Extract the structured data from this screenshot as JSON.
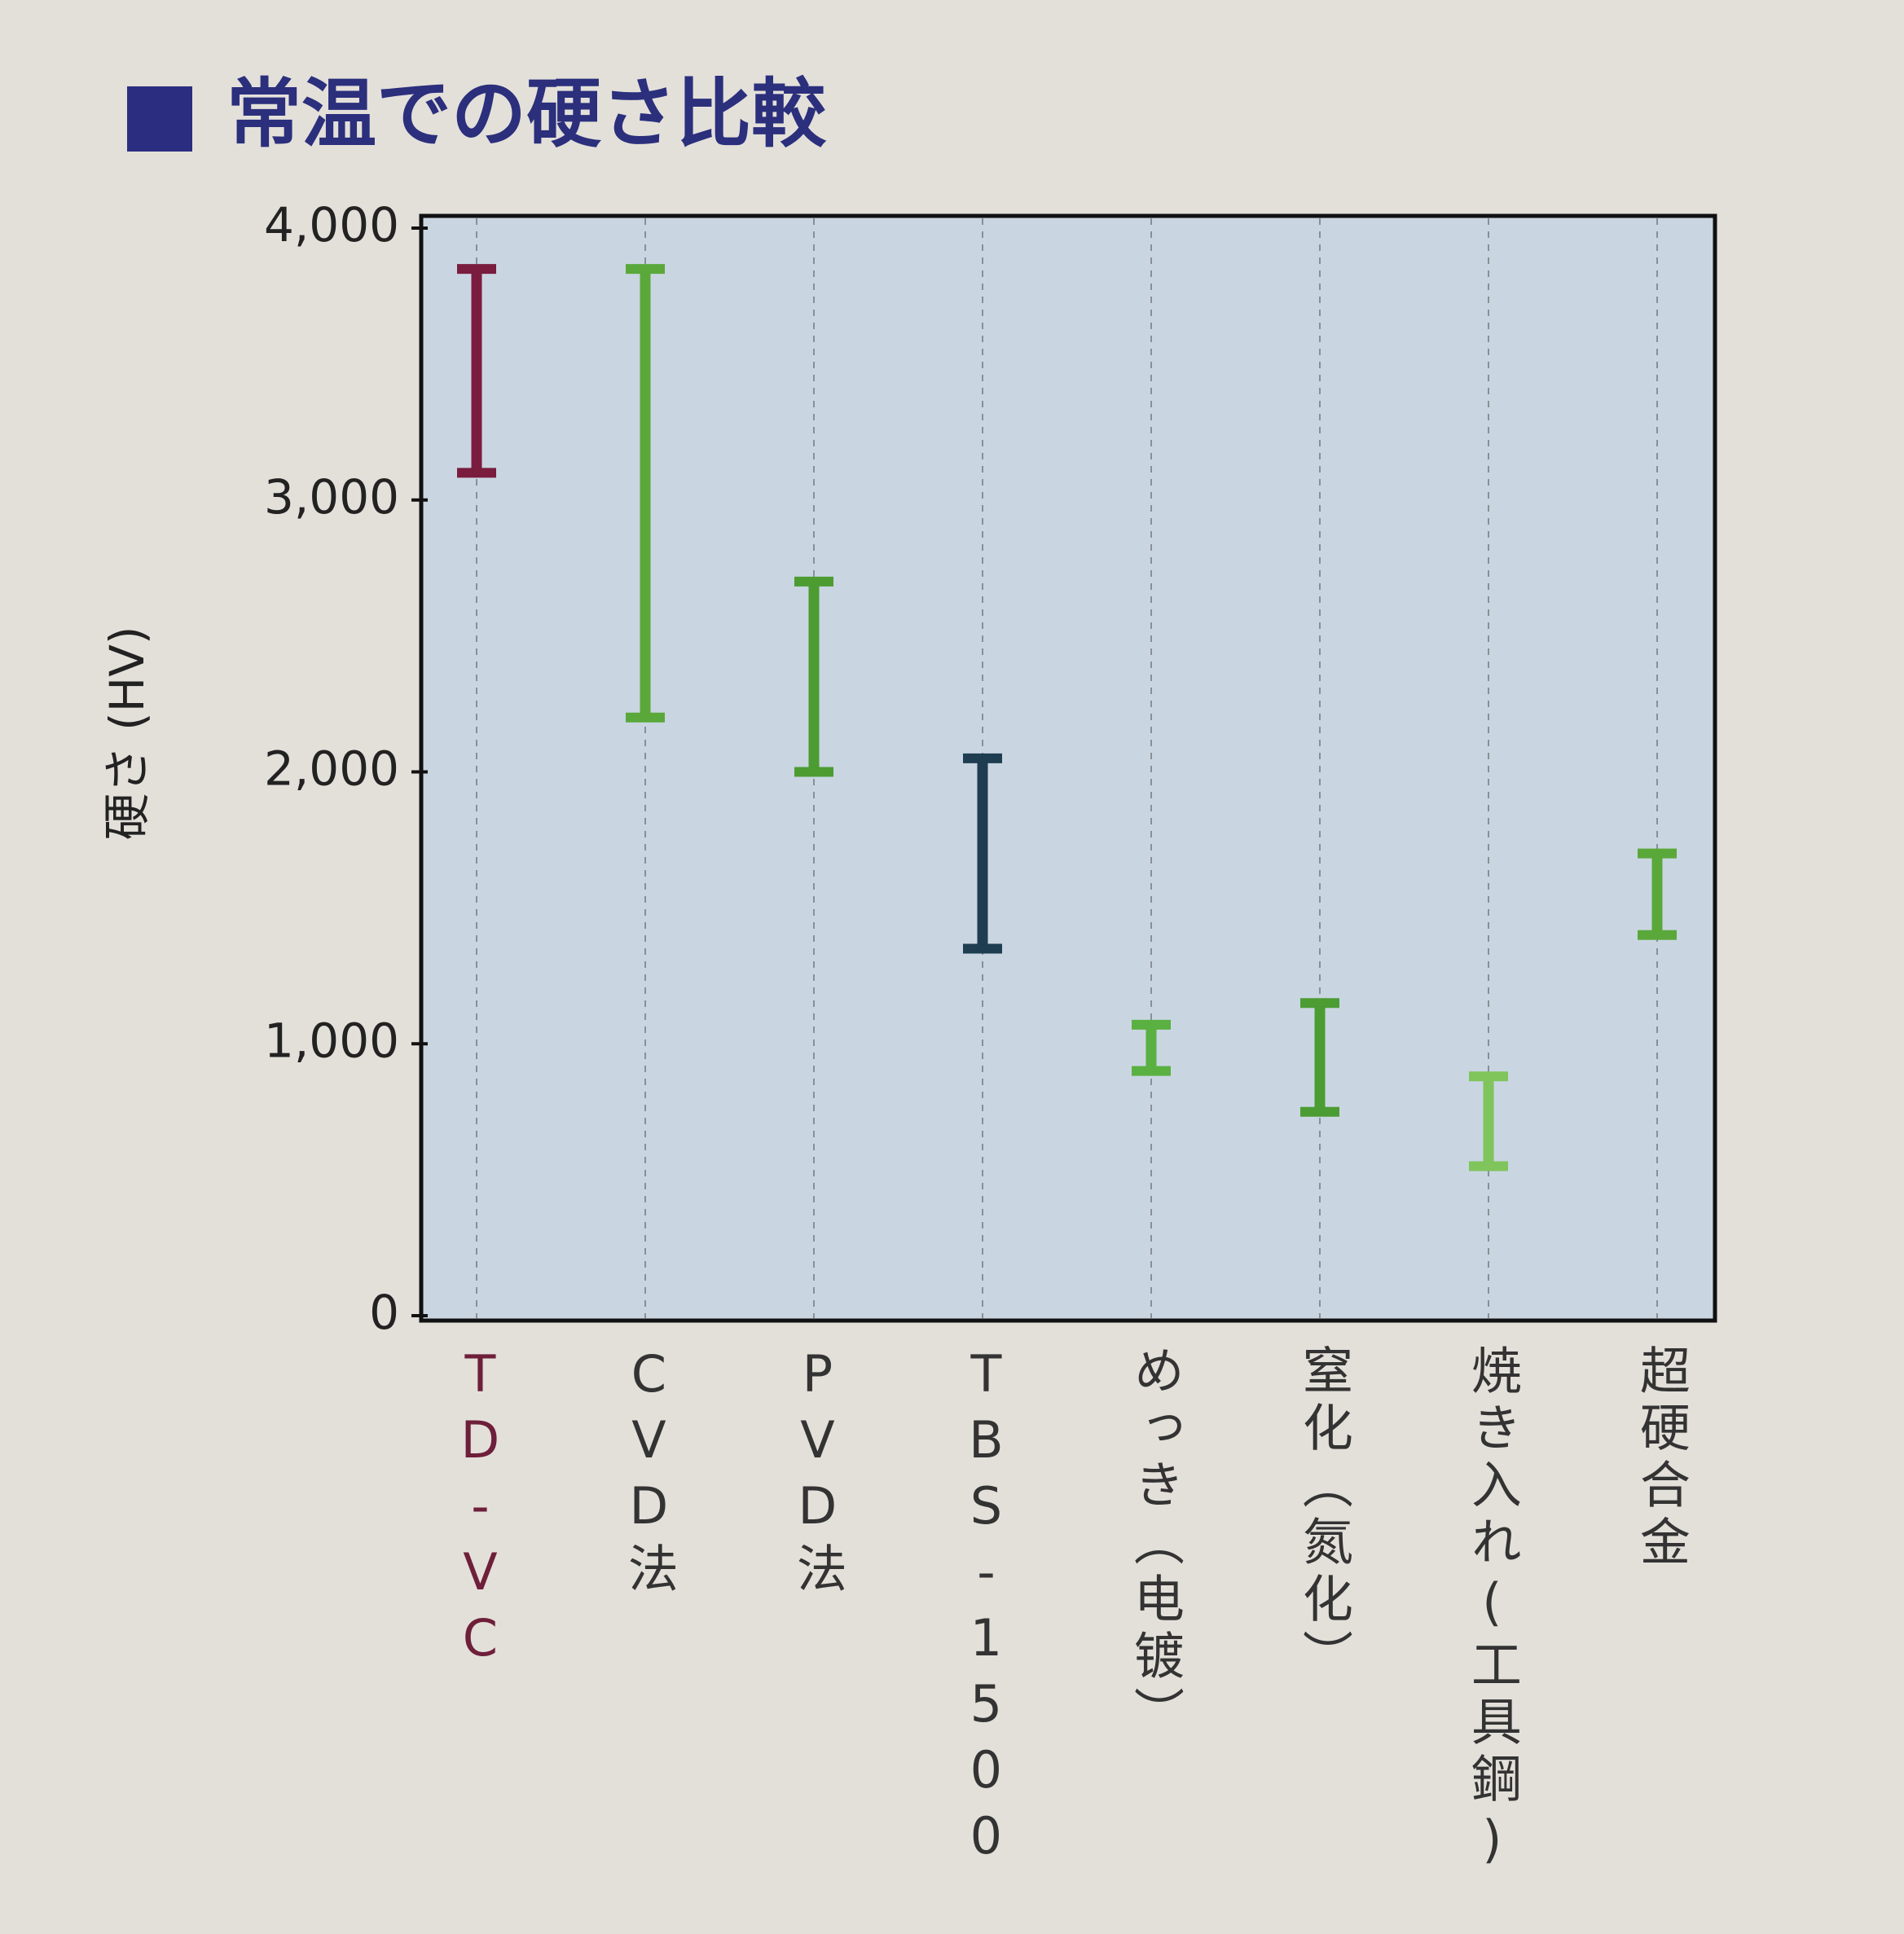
{
  "chart_data": {
    "type": "range",
    "title": "常温での硬さ比較",
    "y_label": "硬さ (HV)",
    "categories": [
      "TD-VC",
      "CVD法",
      "PVD法",
      "TBS-1500",
      "めっき（电镀）",
      "窒化（氮化）",
      "焼き入れ(工具鋼)",
      "超硬合金"
    ],
    "category_colors": [
      "#6e1f3a",
      "#333333",
      "#333333",
      "#333333",
      "#333333",
      "#333333",
      "#333333",
      "#333333"
    ],
    "low": [
      3100,
      2200,
      2000,
      1350,
      900,
      750,
      550,
      1400
    ],
    "high": [
      3850,
      3850,
      2700,
      2050,
      1070,
      1150,
      880,
      1700
    ],
    "colors": [
      "#7a1c3e",
      "#5aa83a",
      "#4c9c32",
      "#1e3d50",
      "#5ab040",
      "#4c9c34",
      "#80c45c",
      "#5aa83a"
    ],
    "ylim": [
      0,
      4000
    ],
    "yticks": [
      0,
      {
        "value": 1000,
        "label": "1,000"
      },
      {
        "value": 2000,
        "label": "2,000"
      },
      {
        "value": 3000,
        "label": "3,000"
      },
      {
        "value": 4000,
        "label": "4,000"
      }
    ],
    "grid": true
  }
}
